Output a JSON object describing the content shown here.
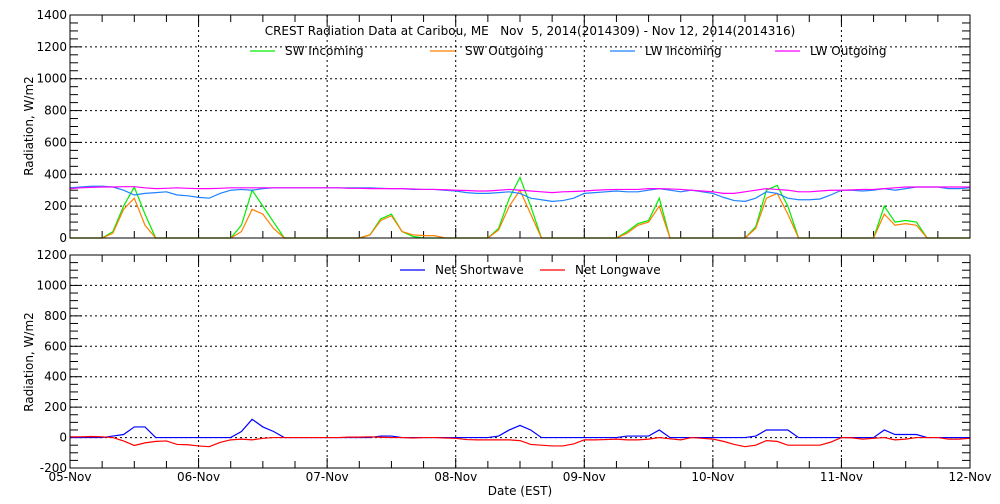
{
  "chart_data": [
    {
      "type": "line",
      "title": "CREST Radiation Data at Caribou, ME   Nov  5, 2014(2014309) - Nov 12, 2014(2014316)",
      "ylabel": "Radiation, W/m2",
      "xlabel": "",
      "ylim": [
        0,
        1400
      ],
      "yticks": [
        0,
        200,
        400,
        600,
        800,
        1000,
        1200,
        1400
      ],
      "xlim": [
        "05-Nov",
        "12-Nov"
      ],
      "grid": true,
      "legend_placement": "top",
      "x_step_hours": 2,
      "series": [
        {
          "name": "SW Incoming",
          "color": "#00ee00",
          "values": [
            0,
            0,
            0,
            0,
            40,
            200,
            320,
            150,
            0,
            0,
            0,
            0,
            0,
            0,
            0,
            0,
            80,
            300,
            200,
            100,
            0,
            0,
            0,
            0,
            0,
            0,
            0,
            0,
            20,
            120,
            150,
            40,
            10,
            0,
            0,
            0,
            0,
            0,
            0,
            0,
            60,
            250,
            380,
            200,
            0,
            0,
            0,
            0,
            0,
            0,
            0,
            0,
            40,
            90,
            110,
            250,
            0,
            0,
            0,
            0,
            0,
            0,
            0,
            0,
            70,
            300,
            330,
            200,
            0,
            0,
            0,
            0,
            0,
            0,
            0,
            0,
            200,
            100,
            110,
            100,
            0,
            0,
            0,
            0,
            0
          ]
        },
        {
          "name": "SW Outgoing",
          "color": "#ff7f00",
          "values": [
            0,
            0,
            0,
            0,
            30,
            180,
            250,
            80,
            0,
            0,
            0,
            0,
            0,
            0,
            0,
            0,
            40,
            180,
            150,
            60,
            0,
            0,
            0,
            0,
            0,
            0,
            0,
            0,
            20,
            110,
            140,
            40,
            20,
            15,
            15,
            0,
            0,
            0,
            0,
            0,
            50,
            200,
            300,
            150,
            0,
            0,
            0,
            0,
            0,
            0,
            0,
            0,
            30,
            80,
            100,
            200,
            0,
            0,
            0,
            0,
            0,
            0,
            0,
            0,
            60,
            250,
            280,
            150,
            0,
            0,
            0,
            0,
            0,
            0,
            0,
            0,
            150,
            80,
            90,
            80,
            0,
            0,
            0,
            0,
            0
          ]
        },
        {
          "name": "LW Incoming",
          "color": "#1e82ff",
          "values": [
            315,
            320,
            325,
            325,
            320,
            300,
            270,
            280,
            285,
            290,
            270,
            265,
            255,
            250,
            280,
            300,
            305,
            300,
            310,
            315,
            315,
            315,
            315,
            315,
            315,
            315,
            315,
            315,
            315,
            312,
            310,
            310,
            305,
            305,
            305,
            300,
            295,
            285,
            280,
            280,
            285,
            290,
            280,
            250,
            240,
            230,
            235,
            250,
            280,
            285,
            290,
            295,
            290,
            290,
            300,
            310,
            300,
            290,
            300,
            290,
            280,
            255,
            235,
            230,
            250,
            290,
            280,
            250,
            240,
            240,
            245,
            270,
            300,
            300,
            295,
            300,
            310,
            300,
            310,
            320,
            320,
            320,
            310,
            310,
            315
          ]
        },
        {
          "name": "LW Outgoing",
          "color": "#ff00ff",
          "values": [
            310,
            315,
            318,
            320,
            320,
            322,
            322,
            315,
            310,
            312,
            315,
            312,
            310,
            310,
            312,
            315,
            315,
            315,
            315,
            315,
            315,
            315,
            315,
            315,
            315,
            315,
            312,
            312,
            310,
            310,
            310,
            310,
            308,
            305,
            305,
            303,
            300,
            298,
            295,
            295,
            300,
            305,
            300,
            295,
            290,
            285,
            290,
            292,
            295,
            300,
            303,
            305,
            305,
            305,
            310,
            310,
            308,
            305,
            300,
            295,
            290,
            280,
            280,
            290,
            300,
            310,
            305,
            300,
            290,
            290,
            295,
            300,
            300,
            302,
            305,
            305,
            310,
            315,
            320,
            320,
            320,
            320,
            320,
            320,
            320
          ]
        }
      ]
    },
    {
      "type": "line",
      "title": "",
      "ylabel": "Radiation, W/m2",
      "xlabel": "Date (EST)",
      "ylim": [
        -200,
        1200
      ],
      "yticks": [
        -200,
        0,
        200,
        400,
        600,
        800,
        1000,
        1200
      ],
      "xticks": [
        "05-Nov",
        "06-Nov",
        "07-Nov",
        "08-Nov",
        "09-Nov",
        "10-Nov",
        "11-Nov",
        "12-Nov"
      ],
      "grid": true,
      "legend_placement": "top",
      "x_step_hours": 2,
      "series": [
        {
          "name": "Net Shortwave",
          "color": "#0000ff",
          "values": [
            0,
            0,
            0,
            0,
            10,
            20,
            70,
            70,
            0,
            0,
            0,
            0,
            0,
            0,
            0,
            0,
            40,
            120,
            70,
            40,
            0,
            0,
            0,
            0,
            0,
            0,
            0,
            0,
            0,
            10,
            10,
            0,
            0,
            0,
            0,
            0,
            0,
            0,
            0,
            0,
            10,
            50,
            80,
            50,
            0,
            0,
            0,
            0,
            0,
            0,
            0,
            0,
            10,
            10,
            10,
            50,
            0,
            0,
            0,
            0,
            0,
            0,
            0,
            0,
            10,
            50,
            50,
            50,
            0,
            0,
            0,
            0,
            0,
            0,
            0,
            0,
            50,
            20,
            20,
            20,
            0,
            0,
            0,
            0,
            0
          ]
        },
        {
          "name": "Net Longwave",
          "color": "#ff0000",
          "values": [
            5,
            5,
            7,
            5,
            0,
            -22,
            -52,
            -35,
            -25,
            -22,
            -45,
            -47,
            -55,
            -60,
            -32,
            -15,
            -10,
            -15,
            -5,
            0,
            0,
            0,
            0,
            0,
            0,
            0,
            3,
            3,
            5,
            2,
            0,
            0,
            -3,
            0,
            0,
            -3,
            -5,
            -13,
            -15,
            -15,
            -15,
            -15,
            -20,
            -45,
            -50,
            -55,
            -55,
            -42,
            -15,
            -15,
            -13,
            -10,
            -15,
            -15,
            -10,
            0,
            -8,
            -15,
            0,
            -5,
            -10,
            -25,
            -45,
            -60,
            -50,
            -20,
            -25,
            -50,
            -50,
            -50,
            -50,
            -30,
            0,
            -2,
            -10,
            -5,
            0,
            -15,
            -10,
            0,
            0,
            0,
            -10,
            -10,
            -5
          ]
        }
      ]
    }
  ]
}
